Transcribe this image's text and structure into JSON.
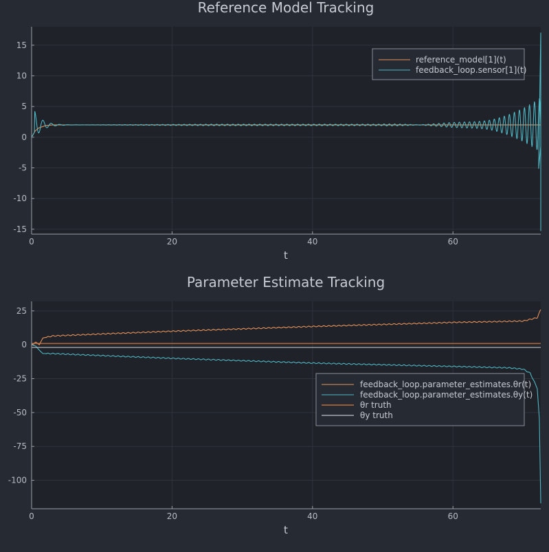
{
  "chart_data": [
    {
      "type": "line",
      "title": "Reference Model Tracking",
      "xlabel": "t",
      "ylabel": "",
      "xlim": [
        0,
        72.5
      ],
      "ylim": [
        -15.8,
        18
      ],
      "xticks": [
        0,
        20,
        40,
        60
      ],
      "yticks": [
        -15,
        -10,
        -5,
        0,
        5,
        10,
        15
      ],
      "grid": true,
      "legend_position": "top-right",
      "series": [
        {
          "name": "reference_model[1](t)",
          "color": "#e8935a",
          "shape": "first-order rise from 0 to 2 within t=2, constant 2 afterwards",
          "values": [
            [
              0,
              0
            ],
            [
              0.5,
              1.0
            ],
            [
              1,
              1.5
            ],
            [
              2,
              1.9
            ],
            [
              3,
              2.0
            ],
            [
              72.5,
              2.0
            ]
          ]
        },
        {
          "name": "feedback_loop.sensor[1](t)",
          "color": "#4fb8c4",
          "shape": "damped oscillation about 2 early on, then growing oscillation near the end",
          "values": [
            [
              0.4,
              0.8
            ],
            [
              0.9,
              3.7
            ],
            [
              1.3,
              -1.2
            ],
            [
              1.8,
              2.5
            ],
            [
              2.5,
              1.5
            ],
            [
              5,
              2.0
            ],
            [
              60,
              2.0
            ],
            [
              66,
              2.4
            ],
            [
              69,
              3.2
            ],
            [
              71,
              4.6
            ],
            [
              72,
              7.2
            ],
            [
              72.2,
              -5.1
            ],
            [
              72.5,
              17.0
            ],
            [
              72.6,
              -15.3
            ]
          ]
        }
      ]
    },
    {
      "type": "line",
      "title": "Parameter Estimate Tracking",
      "xlabel": "t",
      "ylabel": "",
      "xlim": [
        0,
        72.5
      ],
      "ylim": [
        -121,
        32
      ],
      "xticks": [
        0,
        20,
        40,
        60
      ],
      "yticks": [
        -100,
        -75,
        -50,
        -25,
        0,
        25
      ],
      "grid": true,
      "legend_position": "center-right",
      "series": [
        {
          "name": "feedback_loop.parameter_estimates.θr(t)",
          "color": "#e8935a",
          "values": [
            [
              0,
              0
            ],
            [
              0.6,
              2
            ],
            [
              1.1,
              0
            ],
            [
              1.6,
              5
            ],
            [
              3,
              6.5
            ],
            [
              10,
              8
            ],
            [
              20,
              10
            ],
            [
              40,
              13.5
            ],
            [
              60,
              16.5
            ],
            [
              70,
              17.5
            ],
            [
              72,
              20
            ],
            [
              72.5,
              26
            ]
          ]
        },
        {
          "name": "feedback_loop.parameter_estimates.θy(t)",
          "color": "#4fb8c4",
          "values": [
            [
              0,
              0
            ],
            [
              0.6,
              -1
            ],
            [
              1.1,
              -4
            ],
            [
              1.6,
              -6.5
            ],
            [
              3,
              -6.5
            ],
            [
              10,
              -8
            ],
            [
              20,
              -10
            ],
            [
              40,
              -13.5
            ],
            [
              60,
              -16
            ],
            [
              68,
              -17
            ],
            [
              70,
              -18
            ],
            [
              71,
              -21
            ],
            [
              72,
              -32
            ],
            [
              72.3,
              -55
            ],
            [
              72.5,
              -117
            ]
          ]
        },
        {
          "name": "θr truth",
          "color": "#e07c3e",
          "values": [
            [
              0,
              1
            ],
            [
              72.5,
              1
            ]
          ]
        },
        {
          "name": "θy truth",
          "color": "#c3c6cc",
          "values": [
            [
              0,
              -2
            ],
            [
              72.5,
              -2
            ]
          ]
        }
      ]
    }
  ]
}
